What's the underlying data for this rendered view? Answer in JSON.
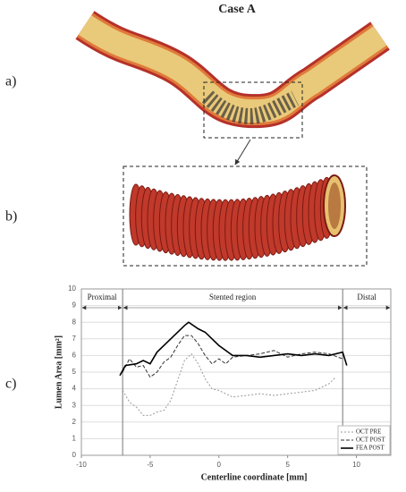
{
  "figure": {
    "title": "Case A",
    "panel_labels": [
      "a)",
      "b)",
      "c)"
    ]
  },
  "chart_data": {
    "type": "line",
    "xlabel": "Centerline coordinate [mm]",
    "ylabel": "Lumen Area [mm²]",
    "xlim": [
      -10,
      12.5
    ],
    "ylim": [
      0,
      10
    ],
    "xticks": [
      -10,
      -5,
      0,
      5,
      10
    ],
    "yticks": [
      0,
      1,
      2,
      3,
      4,
      5,
      6,
      7,
      8,
      9,
      10
    ],
    "grid": true,
    "legend": "lower right",
    "regions": [
      "Proximal",
      "Stented region",
      "Distal"
    ],
    "region_bounds": [
      -7,
      9
    ],
    "series": [
      {
        "name": "OCT PRE",
        "color": "#999999",
        "dash": "2,2",
        "x": [
          -7,
          -6.5,
          -6,
          -5.5,
          -5,
          -4.5,
          -4,
          -3.5,
          -3,
          -2.5,
          -2,
          -1.5,
          -1,
          -0.5,
          0,
          1,
          2,
          3,
          4,
          5,
          6,
          7,
          8,
          8.5
        ],
        "values": [
          3.9,
          3.2,
          2.9,
          2.4,
          2.4,
          2.6,
          2.7,
          3.3,
          4.5,
          5.7,
          6.1,
          5.5,
          4.6,
          4.0,
          3.9,
          3.5,
          3.6,
          3.7,
          3.6,
          3.7,
          3.8,
          3.9,
          4.3,
          4.7
        ]
      },
      {
        "name": "OCT POST",
        "color": "#333333",
        "dash": "4,2",
        "x": [
          -7,
          -6.5,
          -6,
          -5.5,
          -5,
          -4.5,
          -4,
          -3.5,
          -3,
          -2.5,
          -2,
          -1.5,
          -1,
          -0.5,
          0,
          0.5,
          1,
          2,
          3,
          4,
          5,
          6,
          7,
          8,
          9
        ],
        "values": [
          5.0,
          5.8,
          5.3,
          5.4,
          4.7,
          5.0,
          5.6,
          5.9,
          6.6,
          7.2,
          7.2,
          6.7,
          6.0,
          5.5,
          5.8,
          5.5,
          5.9,
          6.0,
          6.1,
          6.3,
          5.9,
          6.1,
          6.2,
          6.1,
          5.8
        ]
      },
      {
        "name": "FEA POST",
        "color": "#000000",
        "dash": "",
        "x": [
          -7.2,
          -6.8,
          -6,
          -5.5,
          -5,
          -4.5,
          -3.5,
          -2.5,
          -2.2,
          -1.5,
          -1,
          0,
          1,
          2,
          3,
          4,
          5,
          6,
          7,
          8,
          9,
          9.3
        ],
        "values": [
          4.8,
          5.4,
          5.5,
          5.7,
          5.5,
          6.2,
          7.0,
          7.8,
          8.0,
          7.6,
          7.4,
          6.6,
          6.0,
          6.0,
          5.9,
          6.0,
          6.1,
          6.0,
          6.1,
          6.0,
          6.2,
          5.4
        ]
      }
    ]
  }
}
